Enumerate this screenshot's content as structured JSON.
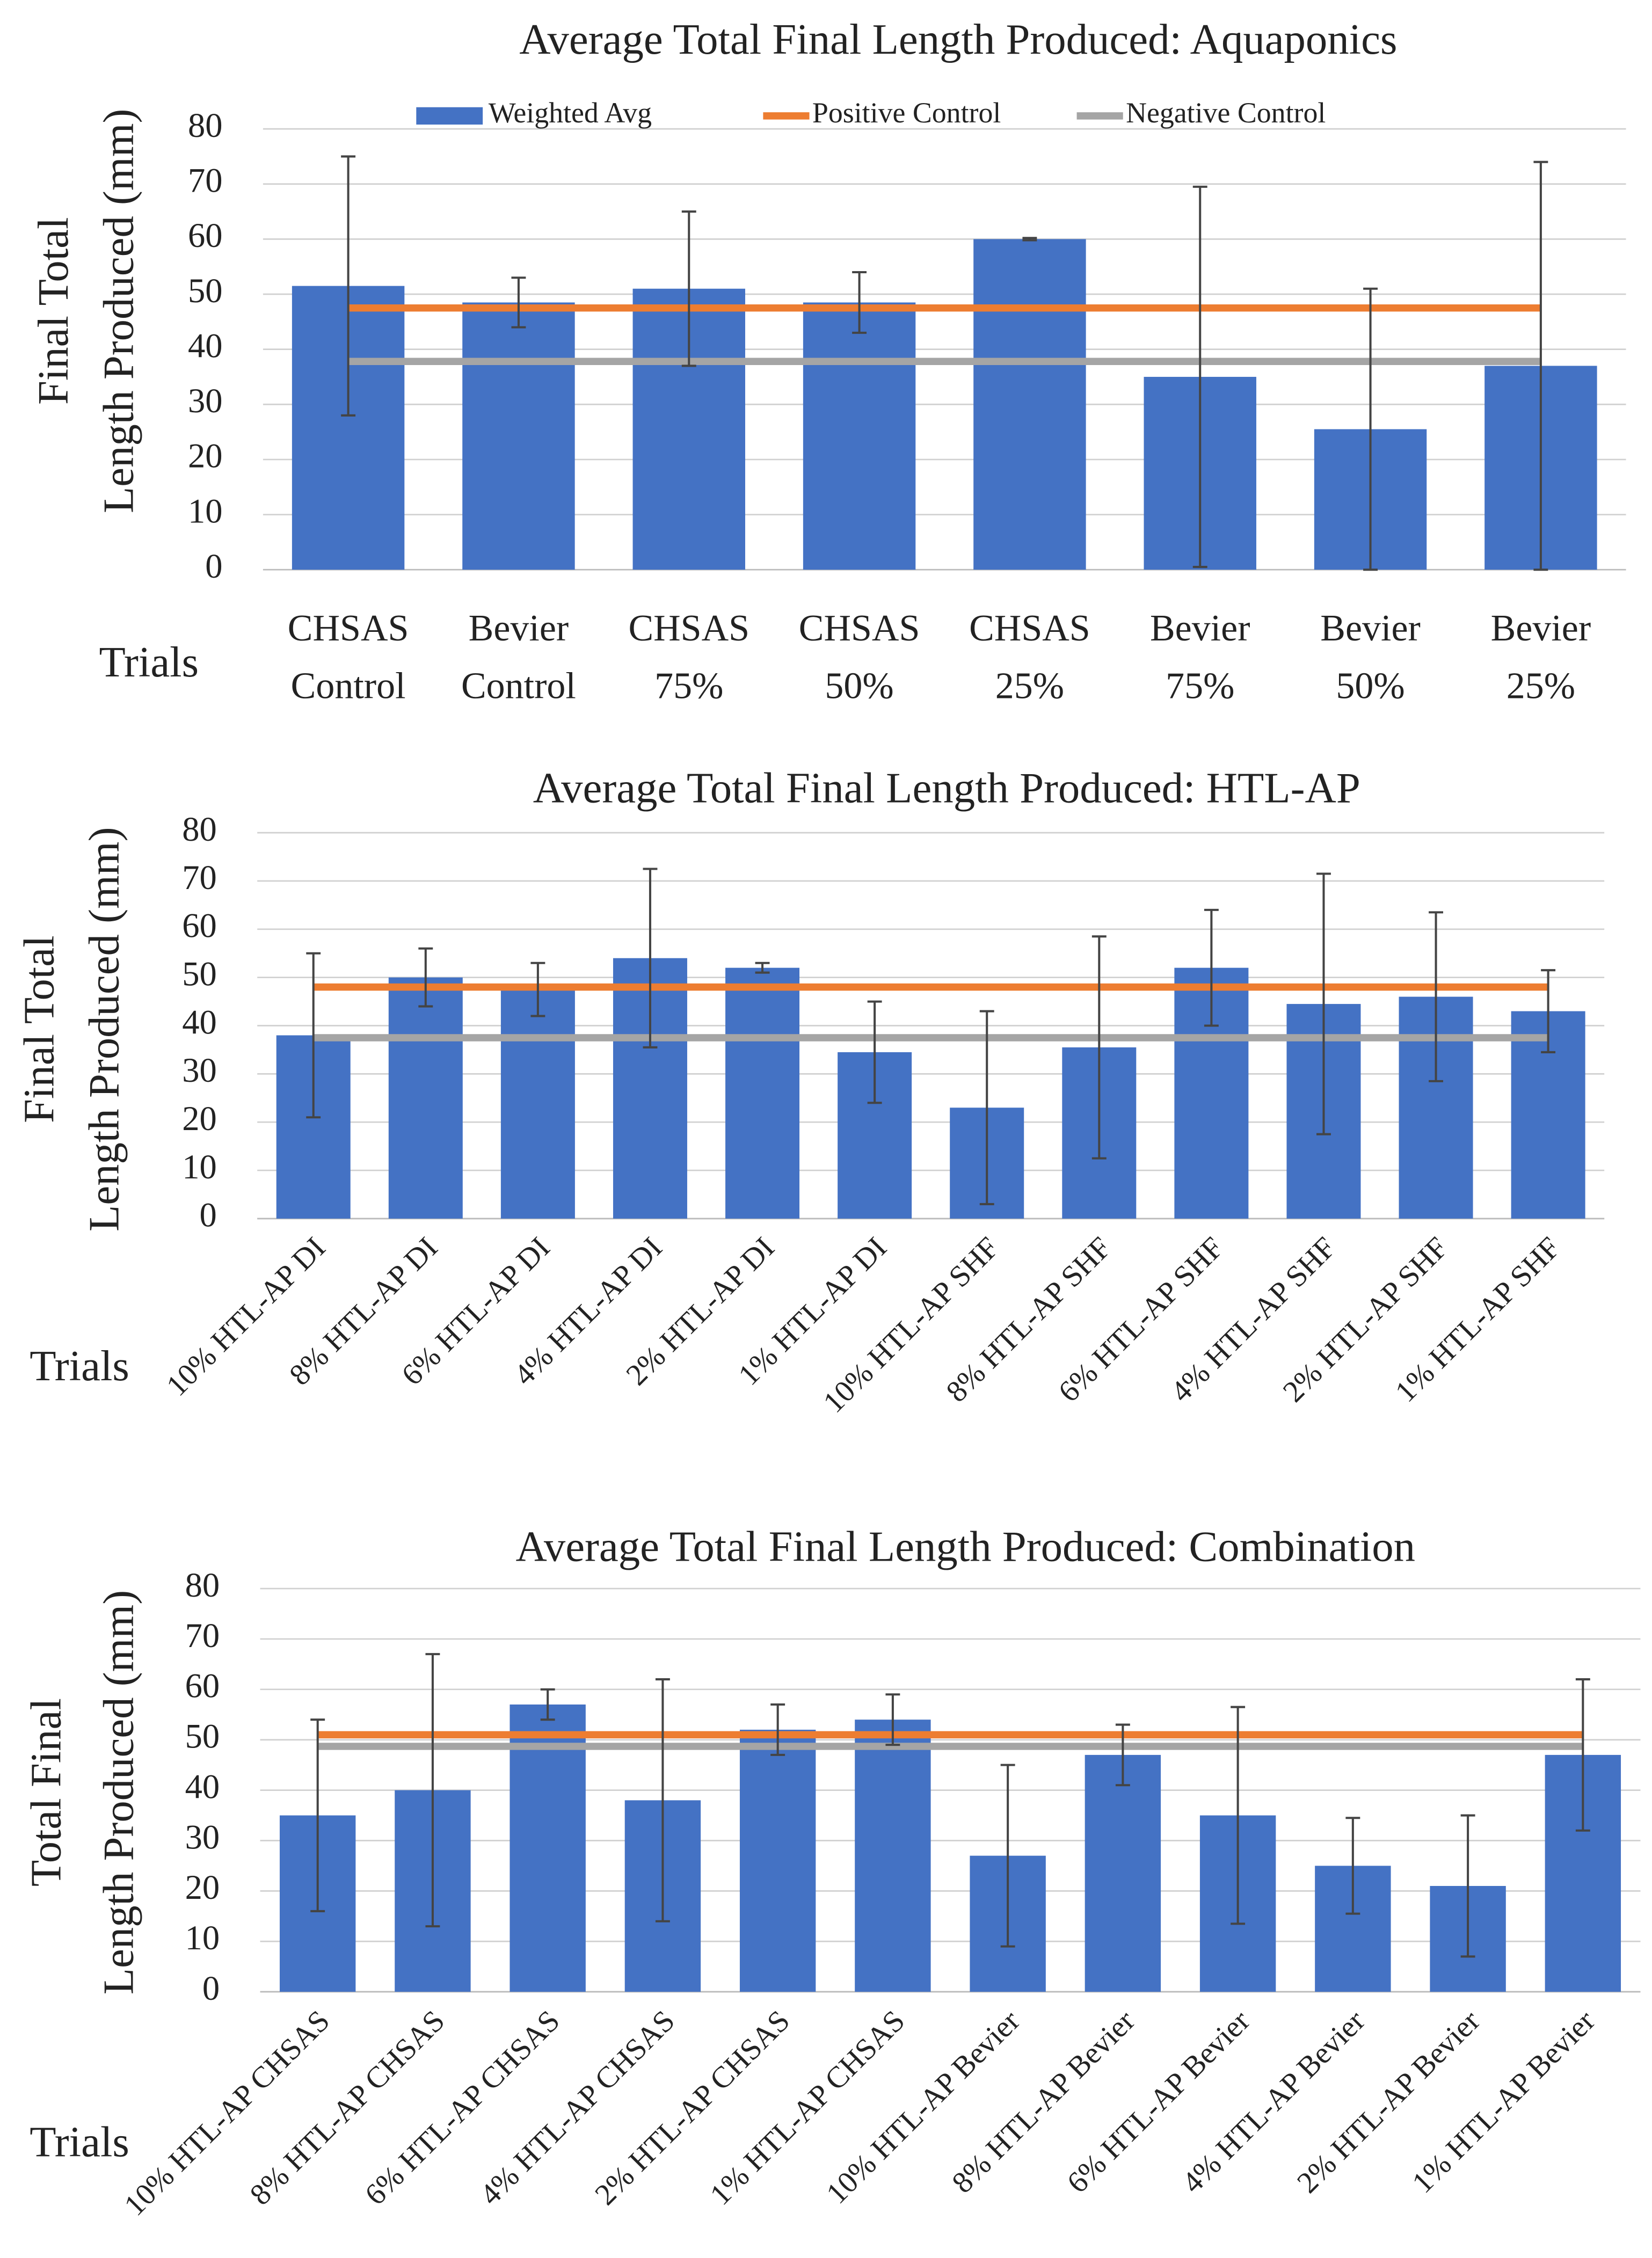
{
  "chart_data": [
    {
      "type": "bar",
      "title": "Average Total Final Length Produced: Aquaponics",
      "x_label": "Trials",
      "y_label": [
        "Final Total",
        "Length Produced (mm)"
      ],
      "categories": [
        [
          "CHSAS",
          "Control"
        ],
        [
          "Bevier",
          "Control"
        ],
        [
          "CHSAS",
          "75%"
        ],
        [
          "CHSAS",
          "50%"
        ],
        [
          "CHSAS",
          "25%"
        ],
        [
          "Bevier",
          "75%"
        ],
        [
          "Bevier",
          "50%"
        ],
        [
          "Bevier",
          "25%"
        ]
      ],
      "series": [
        {
          "name": "Weighted Avg",
          "color": "#4472c4",
          "values": [
            51.5,
            48.5,
            51,
            48.5,
            60,
            35,
            25.5,
            37
          ],
          "errors": [
            23.5,
            4.5,
            14,
            5.5,
            0.2,
            34.5,
            25.5,
            37
          ]
        }
      ],
      "hlines": [
        {
          "name": "Positive Control",
          "color": "#ed7d31",
          "value": 47.5
        },
        {
          "name": "Negative Control",
          "color": "#a5a5a5",
          "value": 37.8
        }
      ],
      "ylim": [
        0,
        80
      ],
      "yticks": [
        0,
        10,
        20,
        30,
        40,
        50,
        60,
        70,
        80
      ],
      "grid": true,
      "legend": "top"
    },
    {
      "type": "bar",
      "title": "Average Total Final Length Produced: HTL-AP",
      "x_label": "Trials",
      "y_label": [
        "Final Total",
        "Length Produced (mm)"
      ],
      "categories": [
        "10% HTL-AP DI",
        "8% HTL-AP DI",
        "6% HTL-AP DI",
        "4% HTL-AP DI",
        "2% HTL-AP DI",
        "1% HTL-AP DI",
        "10% HTL-AP SHF",
        "8% HTL-AP SHF",
        "6% HTL-AP SHF",
        "4% HTL-AP SHF",
        "2% HTL-AP SHF",
        "1% HTL-AP SHF"
      ],
      "series": [
        {
          "color": "#4472c4",
          "values": [
            38,
            50,
            47.5,
            54,
            52,
            34.5,
            23,
            35.5,
            52,
            44.5,
            46,
            43
          ],
          "errors": [
            17,
            6,
            5.5,
            18.5,
            1,
            10.5,
            20,
            23,
            12,
            27,
            17.5,
            8.5
          ]
        }
      ],
      "hlines": [
        {
          "color": "#ed7d31",
          "value": 48
        },
        {
          "color": "#a5a5a5",
          "value": 37.5
        }
      ],
      "ylim": [
        0,
        80
      ],
      "yticks": [
        0,
        10,
        20,
        30,
        40,
        50,
        60,
        70,
        80
      ],
      "grid": true
    },
    {
      "type": "bar",
      "title": "Average Total Final Length Produced: Combination",
      "x_label": "Trials",
      "y_label": [
        "Total Final",
        "Length Produced (mm)"
      ],
      "categories": [
        "10% HTL-AP CHSAS",
        "8% HTL-AP CHSAS",
        "6% HTL-AP CHSAS",
        "4% HTL-AP CHSAS",
        "2% HTL-AP CHSAS",
        "1% HTL-AP CHSAS",
        "10% HTL-AP Bevier",
        "8% HTL-AP Bevier",
        "6% HTL-AP Bevier",
        "4% HTL-AP Bevier",
        "2% HTL-AP Bevier",
        "1% HTL-AP Bevier"
      ],
      "series": [
        {
          "color": "#4472c4",
          "values": [
            35,
            40,
            57,
            38,
            52,
            54,
            27,
            47,
            35,
            25,
            21,
            47
          ],
          "errors": [
            19,
            27,
            3,
            24,
            5,
            5,
            18,
            6,
            21.5,
            9.5,
            14,
            15
          ]
        }
      ],
      "hlines": [
        {
          "color": "#ed7d31",
          "value": 51
        },
        {
          "color": "#a5a5a5",
          "value": 48.7
        }
      ],
      "ylim": [
        0,
        80
      ],
      "yticks": [
        0,
        10,
        20,
        30,
        40,
        50,
        60,
        70,
        80
      ],
      "grid": true
    }
  ]
}
